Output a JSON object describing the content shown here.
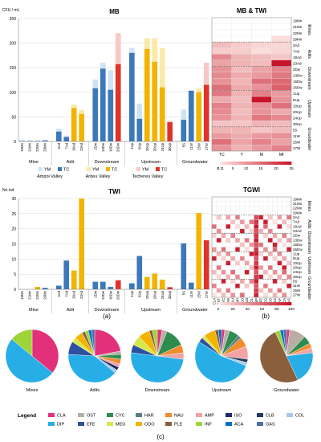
{
  "chart_data": [
    {
      "type": "bar",
      "title": "MB",
      "ylabel": "CFU / mL",
      "ylim": [
        0,
        250
      ],
      "yticks": [
        0,
        50,
        100,
        150,
        200,
        250
      ],
      "categories": [
        "19Mn",
        "21Mn",
        "22Mn",
        "29Mn",
        "3Ad",
        "7Ad",
        "18Ad",
        "23Ad",
        "2Dw",
        "13Dw",
        "16Dw",
        "26Dw",
        "1Up",
        "8Up",
        "10Up",
        "20Up",
        "24Up",
        "30Up",
        "5S",
        "11W",
        "25W",
        "27W"
      ],
      "groups": [
        "Mine",
        "Adit",
        "Downstream",
        "Upstream",
        "Groundwater"
      ],
      "group_spans": [
        [
          0,
          3
        ],
        [
          4,
          7
        ],
        [
          8,
          11
        ],
        [
          12,
          17
        ],
        [
          18,
          21
        ]
      ],
      "bar_colors": [
        "#3d78b8",
        "#3d78b8",
        "#3d78b8",
        "#3d78b8",
        "#3d78b8",
        "#3d78b8",
        "#f2b400",
        "#f2b400",
        "#3d78b8",
        "#3d78b8",
        "#3d78b8",
        "#e0332a",
        "#3d78b8",
        "#3d78b8",
        "#f2b400",
        "#f2b400",
        "#f2b400",
        "#e0332a",
        "#3d78b8",
        "#3d78b8",
        "#f2b400",
        "#e0332a"
      ],
      "series": [
        {
          "name": "TC",
          "values": [
            1,
            1,
            1,
            2,
            20,
            9,
            68,
            56,
            108,
            148,
            105,
            157,
            180,
            46,
            188,
            162,
            110,
            39,
            44,
            103,
            100,
            115
          ]
        },
        {
          "name": "YM",
          "values": [
            2,
            2,
            2,
            3,
            26,
            12,
            75,
            64,
            126,
            160,
            145,
            220,
            190,
            77,
            210,
            210,
            190,
            42,
            65,
            104,
            108,
            160
          ]
        }
      ],
      "legend": [
        {
          "label": "YM",
          "color": "#cfe3f4"
        },
        {
          "label": "TC",
          "color": "#3d78b8"
        },
        {
          "label": "Ampoi Valley",
          "color": "#3d78b8"
        },
        {
          "label": "YM",
          "color": "#fbe9a6"
        },
        {
          "label": "TC",
          "color": "#f2b400"
        },
        {
          "label": "Ardeu Valley",
          "color": "#f2b400"
        },
        {
          "label": "YM",
          "color": "#f7c9c6"
        },
        {
          "label": "TC",
          "color": "#e0332a"
        },
        {
          "label": "Techereu Valley",
          "color": "#e0332a"
        }
      ]
    },
    {
      "type": "bar",
      "title": "TWI",
      "ylabel": "No ind",
      "ylim": [
        0,
        30
      ],
      "yticks": [
        0,
        5,
        10,
        15,
        20,
        25,
        30
      ],
      "categories": [
        "19Mn",
        "21Mn",
        "22Mn",
        "29Mn",
        "3Ad",
        "7Ad",
        "18Ad",
        "23Ad",
        "2Dw",
        "13Dw",
        "16Dw",
        "26Dw",
        "1Up",
        "8Up",
        "10Up",
        "20Up",
        "24Up",
        "30Up",
        "5S",
        "11W",
        "25W",
        "27W"
      ],
      "groups": [
        "Mine",
        "Adit",
        "Downstream",
        "Upstream",
        "Groundwater"
      ],
      "group_spans": [
        [
          0,
          3
        ],
        [
          4,
          7
        ],
        [
          8,
          11
        ],
        [
          12,
          17
        ],
        [
          18,
          21
        ]
      ],
      "bar_colors": [
        "#3d78b8",
        "#3d78b8",
        "#f2b400",
        "#3d78b8",
        "#3d78b8",
        "#3d78b8",
        "#f2b400",
        "#f2b400",
        "#3d78b8",
        "#3d78b8",
        "#3d78b8",
        "#e0332a",
        "#3d78b8",
        "#3d78b8",
        "#f2b400",
        "#f2b400",
        "#f2b400",
        "#e0332a",
        "#3d78b8",
        "#3d78b8",
        "#f2b400",
        "#e0332a"
      ],
      "values": [
        0,
        0,
        0.8,
        0.5,
        1.2,
        9.5,
        6.2,
        30,
        2.5,
        2.5,
        0.8,
        3,
        2,
        11,
        4.1,
        5.2,
        3.2,
        0.7,
        15.2,
        2.2,
        25.2,
        16.2
      ]
    },
    {
      "type": "heatmap",
      "title": "MB & TWI",
      "columns": [
        "TC",
        "Y",
        "M",
        "Mf"
      ],
      "rows": [
        "19Mn",
        "21Mn",
        "22Mn",
        "29Mn",
        "3Ad",
        "7Ad",
        "18Ad",
        "23Ad",
        "2Dw",
        "13Dw",
        "16Dw",
        "26Dw",
        "1Up",
        "8Up",
        "10Up",
        "20Up",
        "24Up",
        "30Up",
        "5S",
        "11W",
        "25W",
        "27W"
      ],
      "row_groups": [
        "Mines",
        "Adits",
        "Downstream",
        "Upstream",
        "Groundwater"
      ],
      "scale_ticks": [
        "0",
        "0.1",
        "1",
        "5",
        "10",
        "15",
        "20",
        "25"
      ],
      "values": [
        [
          0,
          0,
          0,
          0
        ],
        [
          0,
          0,
          0,
          0
        ],
        [
          0,
          0,
          0,
          0
        ],
        [
          0,
          0,
          0,
          1
        ],
        [
          5,
          3,
          2,
          2
        ],
        [
          3,
          3,
          1,
          2
        ],
        [
          11,
          6,
          5,
          4
        ],
        [
          8,
          6,
          5,
          25
        ],
        [
          10,
          5,
          8,
          12
        ],
        [
          11,
          7,
          9,
          13
        ],
        [
          10,
          6,
          14,
          15
        ],
        [
          14,
          7,
          10,
          16
        ],
        [
          13,
          6,
          12,
          9
        ],
        [
          7,
          5,
          25,
          10
        ],
        [
          12,
          6,
          10,
          14
        ],
        [
          11,
          5,
          10,
          7
        ],
        [
          10,
          6,
          13,
          11
        ],
        [
          4,
          4,
          6,
          5
        ],
        [
          6,
          6,
          4,
          5
        ],
        [
          9,
          7,
          9,
          10
        ],
        [
          14,
          8,
          12,
          8
        ],
        [
          10,
          6,
          9,
          12
        ]
      ]
    },
    {
      "type": "heatmap",
      "title": "TGWI",
      "columns": [
        "CLA",
        "OST",
        "CYC",
        "HAR",
        "NAU",
        "AMP",
        "ISO",
        "CLB",
        "COL",
        "DIP",
        "EFE",
        "MEG",
        "ODO",
        "PLE",
        "INF",
        "ACA",
        "GAS"
      ],
      "rows": [
        "19Mn",
        "21Mn",
        "22Mn",
        "29Mn",
        "3Ad",
        "7Ad",
        "18Ad",
        "23Ad",
        "2Dw",
        "13Dw",
        "16Dw",
        "26Dw",
        "1Up",
        "8Up",
        "10Up",
        "20Up",
        "24Up",
        "30Up",
        "5S",
        "11W",
        "25W",
        "27W"
      ],
      "row_groups": [
        "Mines",
        "Adits",
        "Downstream",
        "Upstream",
        "Groundwater"
      ],
      "scale_ticks": [
        "0",
        "20",
        "40",
        "60",
        "80",
        "100"
      ]
    },
    {
      "type": "pie",
      "categories": [
        "CLA",
        "OST",
        "CYC",
        "HAR",
        "NAU",
        "AMP",
        "ISO",
        "CLB",
        "COL",
        "DIP",
        "EFE",
        "MEG",
        "ODO",
        "PLE",
        "INF",
        "ACA",
        "GAS"
      ],
      "colors": [
        "#e3307a",
        "#b8aea4",
        "#2e8c4f",
        "#5a7d86",
        "#f08c2d",
        "#f2a3a3",
        "#1d2a6b",
        "#1f3a5c",
        "#a9c9e6",
        "#27aee6",
        "#2f4fa0",
        "#d7e84b",
        "#f2b400",
        "#8b5e3c",
        "#9ed43a",
        "#0072bc",
        "#4d6fa8"
      ],
      "pies": [
        {
          "name": "Mines",
          "values": [
            36,
            0,
            0,
            0,
            0,
            0,
            0,
            0,
            0,
            50,
            0,
            0,
            0,
            0,
            14,
            0,
            0
          ]
        },
        {
          "name": "Adits",
          "values": [
            22,
            2,
            3,
            0,
            3,
            2,
            2,
            0,
            2,
            40,
            8,
            3,
            5,
            2,
            2,
            2,
            2
          ]
        },
        {
          "name": "Downstream",
          "values": [
            3,
            3,
            12,
            0,
            5,
            4,
            0,
            0,
            0,
            50,
            5,
            6,
            7,
            2,
            3,
            0,
            0
          ]
        },
        {
          "name": "Upstream",
          "values": [
            2,
            3,
            6,
            2,
            6,
            8,
            0,
            2,
            2,
            53,
            3,
            2,
            7,
            2,
            0,
            2,
            0
          ]
        },
        {
          "name": "Groundwater",
          "values": [
            2,
            10,
            5,
            0,
            3,
            3,
            0,
            0,
            0,
            20,
            0,
            0,
            0,
            50,
            3,
            2,
            2
          ]
        }
      ]
    }
  ],
  "legend_title": "Legend",
  "panel_labels": {
    "a": "(a)",
    "b": "(b)",
    "c": "(c)"
  }
}
